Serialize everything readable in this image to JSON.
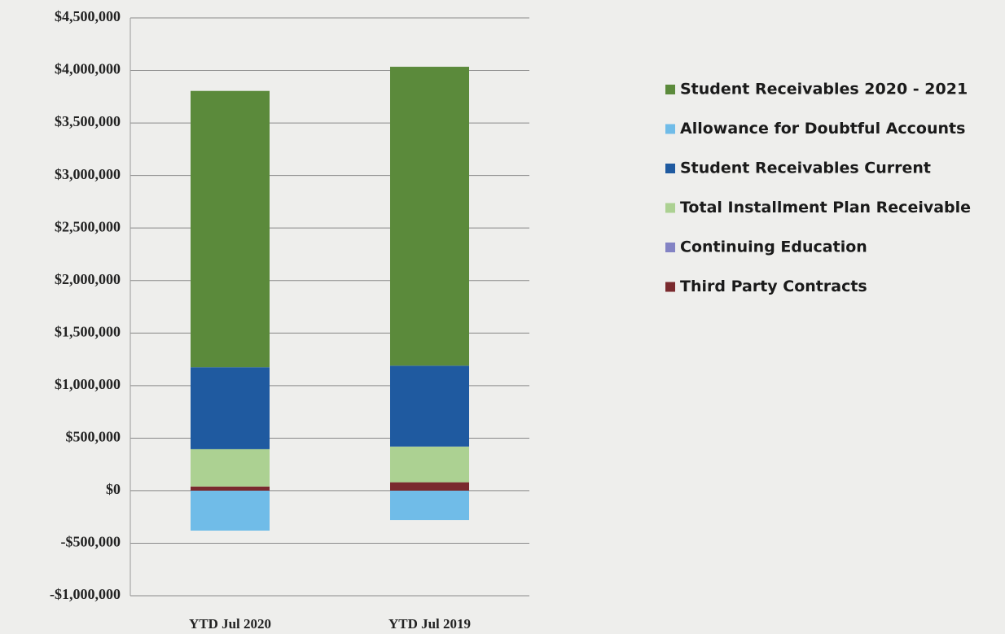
{
  "chart_data": {
    "type": "stacked_bar",
    "categories": [
      "YTD Jul 2020",
      "YTD Jul 2019"
    ],
    "series": [
      {
        "name": "Student Receivables 2020 - 2021",
        "color": "#5b8a3b",
        "values": [
          2630000,
          2845000
        ]
      },
      {
        "name": "Allowance for Doubtful Accounts",
        "color": "#70bce8",
        "values": [
          -380000,
          -280000
        ]
      },
      {
        "name": "Student Receivables Current",
        "color": "#1f5aa0",
        "values": [
          780000,
          770000
        ]
      },
      {
        "name": "Total Installment Plan Receivable",
        "color": "#acd192",
        "values": [
          355000,
          340000
        ]
      },
      {
        "name": "Continuing Education",
        "color": "#8383c4",
        "values": [
          0,
          0
        ]
      },
      {
        "name": "Third Party Contracts",
        "color": "#7a2a2e",
        "values": [
          40000,
          80000
        ]
      }
    ],
    "ylim": [
      -1000000,
      4500000
    ],
    "yticks": [
      {
        "value": -1000000,
        "label": "-$1,000,000"
      },
      {
        "value": -500000,
        "label": "-$500,000"
      },
      {
        "value": 0,
        "label": "$0"
      },
      {
        "value": 500000,
        "label": "$500,000"
      },
      {
        "value": 1000000,
        "label": "$1,000,000"
      },
      {
        "value": 1500000,
        "label": "$1,500,000"
      },
      {
        "value": 2000000,
        "label": "$2,000,000"
      },
      {
        "value": 2500000,
        "label": "$2,500,000"
      },
      {
        "value": 3000000,
        "label": "$3,000,000"
      },
      {
        "value": 3500000,
        "label": "$3,500,000"
      },
      {
        "value": 4000000,
        "label": "$4,000,000"
      },
      {
        "value": 4500000,
        "label": "$4,500,000"
      }
    ],
    "grid": true,
    "legend": "right"
  }
}
